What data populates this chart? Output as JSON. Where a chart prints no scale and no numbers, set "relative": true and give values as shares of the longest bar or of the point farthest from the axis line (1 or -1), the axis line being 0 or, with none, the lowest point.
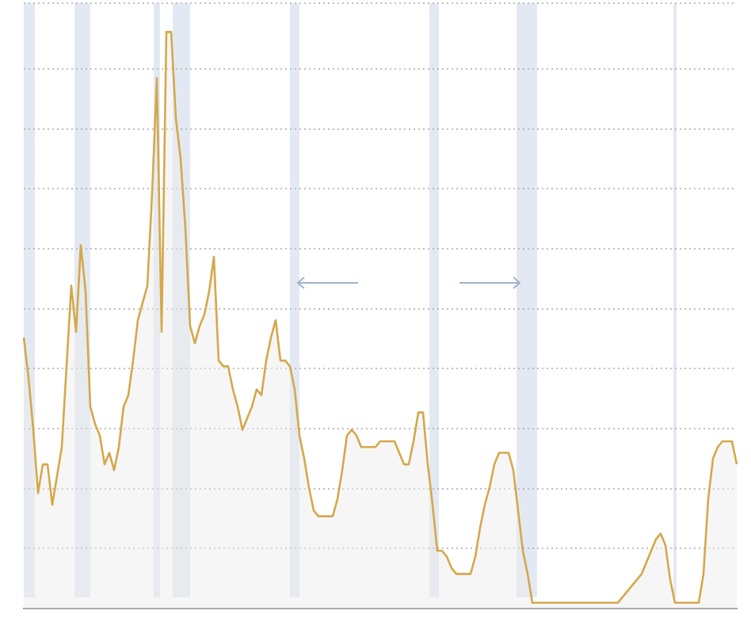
{
  "chart_data": {
    "type": "area",
    "relative": true,
    "grid": "y",
    "legend": false,
    "marker": "none",
    "categories": [
      null,
      null,
      null,
      null,
      null,
      null,
      null,
      null,
      null,
      null,
      null,
      null,
      null,
      null,
      null,
      null,
      null,
      null,
      null,
      null,
      null,
      null,
      null,
      null,
      null,
      null,
      null,
      null,
      null,
      null,
      null,
      null,
      null,
      null,
      null,
      null,
      null,
      null,
      null,
      null,
      null,
      null,
      null,
      null,
      null,
      null,
      null,
      null,
      null,
      null,
      null,
      null,
      null,
      null,
      null,
      null,
      null,
      null,
      null,
      null,
      null,
      null,
      null,
      null,
      null,
      null,
      null,
      null,
      null,
      null,
      null,
      null,
      null,
      null,
      null,
      null,
      null,
      null,
      null,
      null,
      null,
      null,
      null,
      null,
      null,
      null,
      null,
      null,
      null,
      null,
      null,
      null,
      null,
      null,
      null,
      null,
      null,
      null,
      null,
      null,
      null,
      null,
      null,
      null,
      null,
      null,
      null,
      null,
      null,
      null,
      null,
      null,
      null,
      null,
      null,
      null,
      null,
      null,
      null,
      null,
      null,
      null,
      null,
      null,
      null,
      null,
      null,
      null,
      null,
      null,
      null,
      null,
      null,
      null,
      null,
      null,
      null,
      null,
      null,
      null,
      null,
      null,
      null,
      null,
      null,
      null,
      null,
      null,
      null,
      null,
      null
    ],
    "series": [
      {
        "color": "#d4a84b",
        "values": [
          0.47,
          0.4,
          0.31,
          0.2,
          0.25,
          0.25,
          0.18,
          0.23,
          0.28,
          0.42,
          0.56,
          0.48,
          0.63,
          0.55,
          0.35,
          0.32,
          0.3,
          0.25,
          0.27,
          0.24,
          0.28,
          0.35,
          0.37,
          0.43,
          0.5,
          0.53,
          0.56,
          0.72,
          0.92,
          0.48,
          1,
          1,
          0.85,
          0.78,
          0.66,
          0.49,
          0.46,
          0.49,
          0.51,
          0.55,
          0.61,
          0.43,
          0.42,
          0.42,
          0.38,
          0.35,
          0.31,
          0.33,
          0.35,
          0.38,
          0.37,
          0.43,
          0.47,
          0.5,
          0.43,
          0.43,
          0.42,
          0.38,
          0.3,
          0.26,
          0.21,
          0.17,
          0.16,
          0.16,
          0.16,
          0.16,
          0.19,
          0.24,
          0.3,
          0.31,
          0.3,
          0.28,
          0.28,
          0.28,
          0.28,
          0.29,
          0.29,
          0.29,
          0.29,
          0.27,
          0.25,
          0.25,
          0.29,
          0.34,
          0.34,
          0.25,
          0.18,
          0.1,
          0.1,
          0.09,
          0.07,
          0.06,
          0.06,
          0.06,
          0.06,
          0.09,
          0.14,
          0.18,
          0.21,
          0.25,
          0.27,
          0.27,
          0.27,
          0.24,
          0.17,
          0.1,
          0.06,
          0.01,
          0.01,
          0.01,
          0.01,
          0.01,
          0.01,
          0.01,
          0.01,
          0.01,
          0.01,
          0.01,
          0.01,
          0.01,
          0.01,
          0.01,
          0.01,
          0.01,
          0.01,
          0.01,
          0.02,
          0.03,
          0.04,
          0.05,
          0.06,
          0.08,
          0.1,
          0.12,
          0.13,
          0.11,
          0.05,
          0.01,
          0.01,
          0.01,
          0.01,
          0.01,
          0.01,
          0.06,
          0.19,
          0.26,
          0.28,
          0.29,
          0.29,
          0.29,
          0.25
        ]
      }
    ],
    "line_style": "solid"
  }
}
